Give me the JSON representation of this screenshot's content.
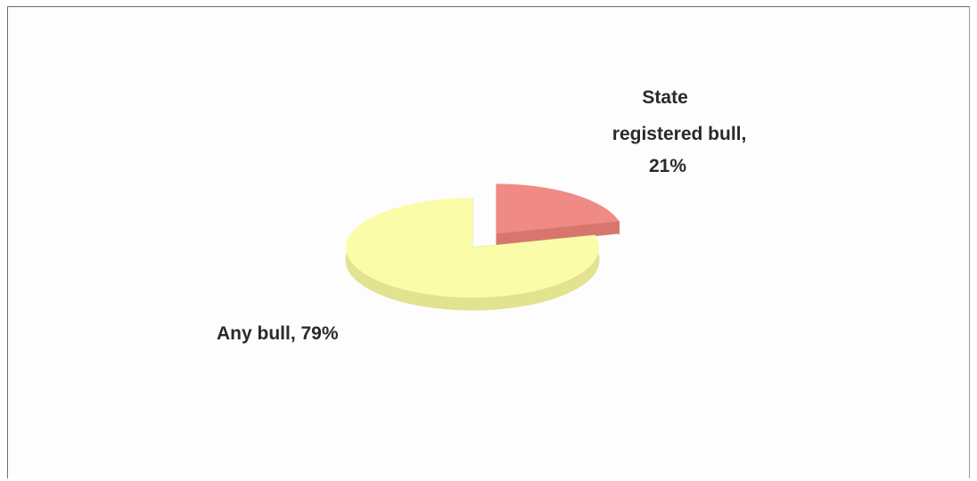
{
  "chart_data": {
    "type": "pie",
    "slices": [
      {
        "label_lines": [
          "State",
          "registered bull,",
          "21%"
        ],
        "value": 21,
        "color": "#ef8b84",
        "side_color": "#d7766f",
        "exploded": true
      },
      {
        "label_lines": [
          "Any bull, 79%"
        ],
        "value": 79,
        "color": "#fbfca8",
        "side_color": "#e3e290",
        "exploded": false
      }
    ],
    "title": "",
    "legend": false,
    "style": "3d exploded pie"
  }
}
